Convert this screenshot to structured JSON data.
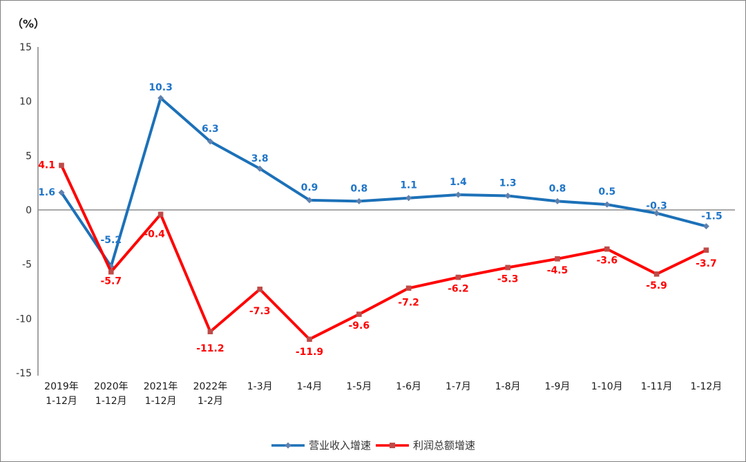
{
  "chart_data": {
    "type": "line",
    "title": "",
    "unit": "（%）",
    "categories": [
      [
        "2019年",
        "1-12月"
      ],
      [
        "2020年",
        "1-12月"
      ],
      [
        "2021年",
        "1-12月"
      ],
      [
        "2022年",
        "1-2月"
      ],
      [
        "1-3月"
      ],
      [
        "1-4月"
      ],
      [
        "1-5月"
      ],
      [
        "1-6月"
      ],
      [
        "1-7月"
      ],
      [
        "1-8月"
      ],
      [
        "1-9月"
      ],
      [
        "1-10月"
      ],
      [
        "1-11月"
      ],
      [
        "1-12月"
      ]
    ],
    "series": [
      {
        "name": "营业收入增速",
        "color": "#1C71B8",
        "label_color": "#1F75C8",
        "marker": "diamond",
        "marker_color": "#5E81AE",
        "values": [
          1.6,
          -5.2,
          10.3,
          6.3,
          3.8,
          0.9,
          0.8,
          1.1,
          1.4,
          1.3,
          0.8,
          0.5,
          -0.3,
          -1.5
        ]
      },
      {
        "name": "利润总额增速",
        "color": "#FF0000",
        "label_color": "#FF0000",
        "marker": "square",
        "marker_color": "#BE4B48",
        "values": [
          4.1,
          -5.7,
          -0.4,
          -11.2,
          -7.3,
          -11.9,
          -9.6,
          -7.2,
          -6.2,
          -5.3,
          -4.5,
          -3.6,
          -5.9,
          -3.7
        ]
      }
    ],
    "y_ticks": [
      15,
      10,
      5,
      0,
      -5,
      -10,
      -15
    ],
    "ylim": [
      -15,
      15
    ],
    "gridlines": "zero-line-only",
    "legend_position": "bottom",
    "axis_color": "#8C8C8C",
    "tick_label_color": "#303030",
    "category_label_color": "#1a1a1a"
  }
}
